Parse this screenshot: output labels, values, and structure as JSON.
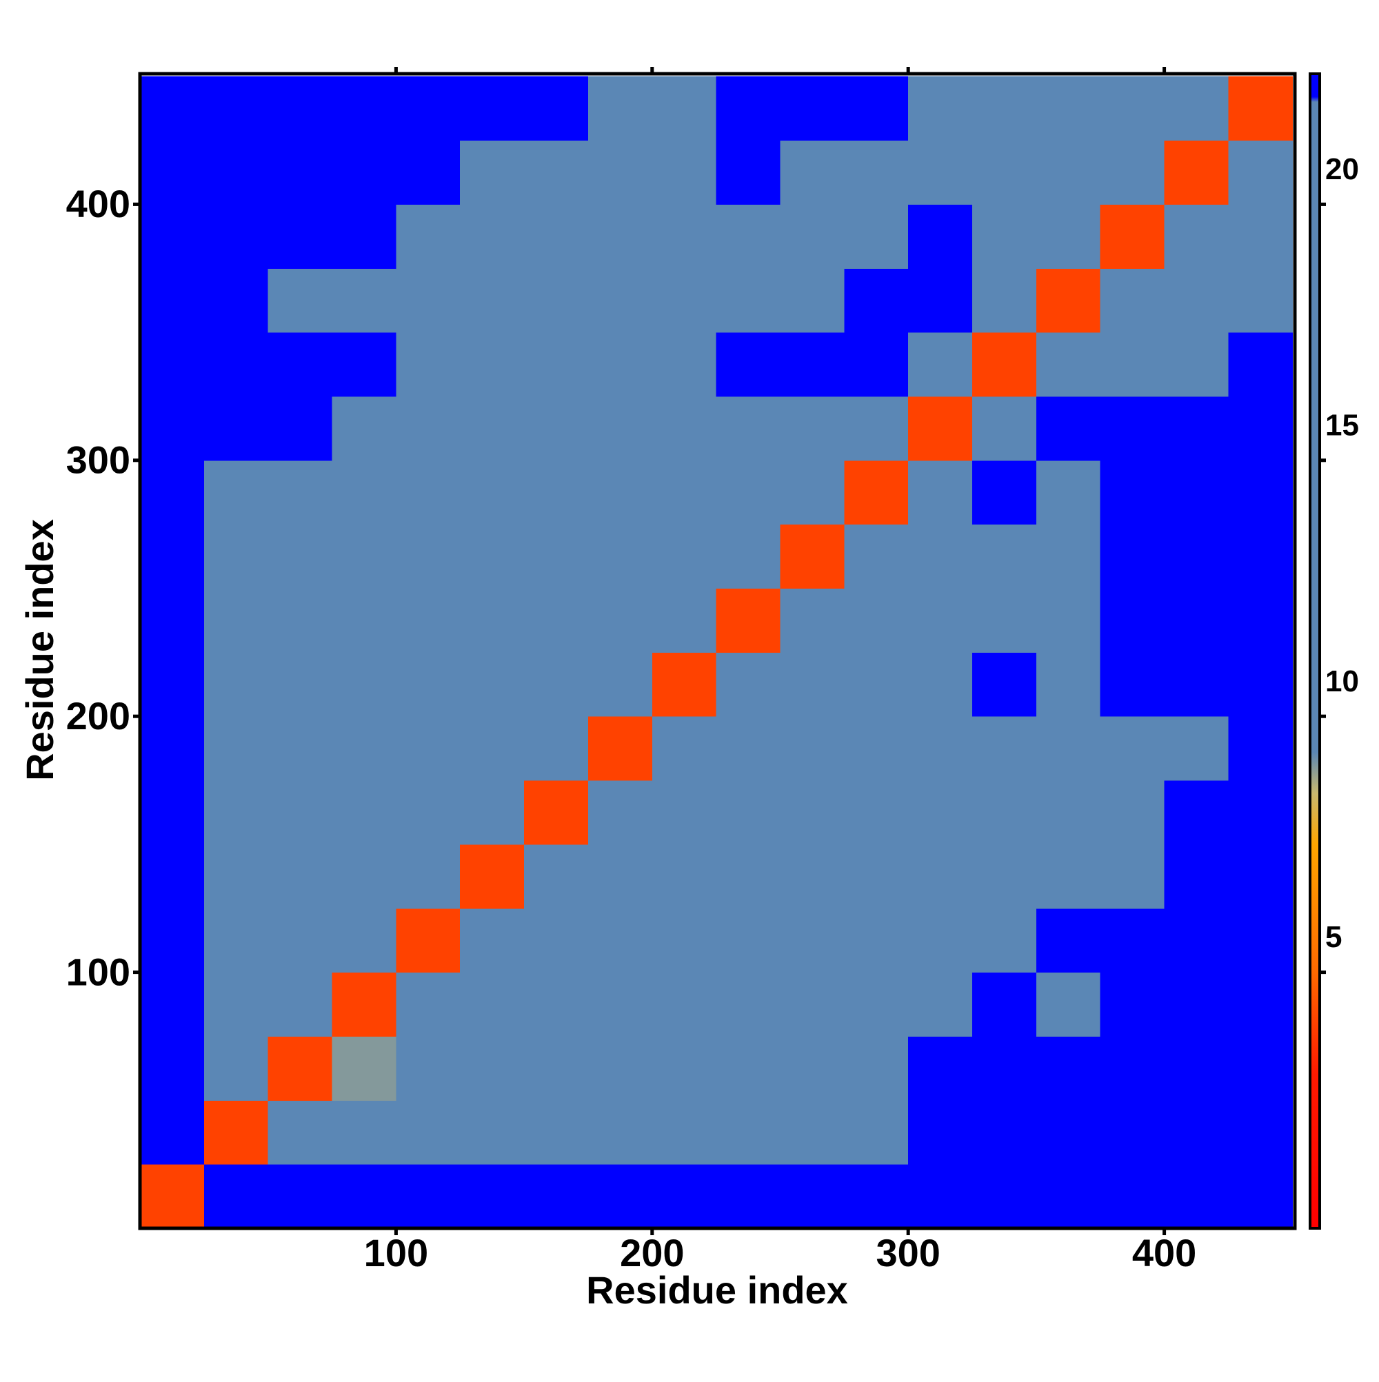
{
  "chart_data": {
    "type": "heatmap",
    "xlabel": "Residue index",
    "ylabel": "Residue index",
    "xlim": [
      0,
      451
    ],
    "ylim": [
      0,
      451
    ],
    "xticks": [
      100,
      200,
      300,
      400
    ],
    "yticks": [
      100,
      200,
      300,
      400
    ],
    "xbins": [
      0,
      25,
      50,
      75,
      100,
      125,
      150,
      175,
      200,
      225,
      250,
      275,
      300,
      325,
      350,
      375,
      400,
      425,
      450
    ],
    "ybins": [
      0,
      25,
      50,
      75,
      100,
      125,
      150,
      175,
      200,
      225,
      250,
      275,
      300,
      325,
      350,
      375,
      400,
      425,
      450
    ],
    "z": [
      [
        4,
        22.5,
        22.5,
        22.5,
        22.5,
        22.5,
        22.5,
        22.5,
        22.5,
        22.5,
        22.5,
        22.5,
        22.5,
        22.5,
        22.5,
        22.5,
        22.5,
        22.5
      ],
      [
        22.5,
        4,
        16,
        16,
        16,
        16,
        16,
        16,
        16,
        16,
        16,
        16,
        22.5,
        22.5,
        22.5,
        22.5,
        22.5,
        22.5
      ],
      [
        22.5,
        12,
        4,
        9,
        15,
        15,
        15,
        15,
        15,
        15,
        15,
        15,
        22.5,
        22.5,
        22.5,
        22.5,
        22.5,
        22.5
      ],
      [
        22.5,
        15,
        12,
        4,
        15,
        15,
        15,
        15,
        15,
        15,
        15,
        15,
        18,
        22.5,
        18,
        22.5,
        22.5,
        22.5
      ],
      [
        22.5,
        15,
        10,
        12,
        4,
        12,
        15,
        15,
        15,
        15,
        15,
        15,
        18,
        20,
        22.5,
        22.5,
        22.5,
        22.5
      ],
      [
        22.5,
        15,
        15,
        12,
        10,
        4,
        12,
        15,
        15,
        15,
        15,
        15,
        18,
        18,
        19,
        18,
        22.5,
        22.5
      ],
      [
        22.5,
        15,
        15,
        15,
        15,
        12,
        4,
        12,
        15,
        15,
        15,
        15,
        18,
        18,
        18,
        18,
        22.5,
        22.5
      ],
      [
        22.5,
        15,
        15,
        15,
        15,
        15,
        12,
        4,
        12,
        15,
        15,
        15,
        18,
        18,
        18,
        18,
        20,
        22.5
      ],
      [
        22.5,
        15,
        15,
        15,
        15,
        15,
        15,
        12,
        4,
        12,
        15,
        15,
        20,
        22.5,
        20,
        22.5,
        22.5,
        22.5
      ],
      [
        22.5,
        15,
        15,
        15,
        15,
        15,
        15,
        15,
        12,
        4,
        12,
        15,
        19,
        20,
        18,
        22.5,
        22.5,
        22.5
      ],
      [
        22.5,
        15,
        15,
        15,
        15,
        15,
        15,
        15,
        15,
        12,
        4,
        12,
        19,
        20,
        19,
        22.5,
        22.5,
        22.5
      ],
      [
        22.5,
        16,
        16,
        16,
        16,
        16,
        16,
        16,
        16,
        16,
        12,
        4,
        14,
        22.5,
        20,
        22.5,
        22.5,
        22.5
      ],
      [
        22.5,
        22.5,
        22.5,
        20,
        20,
        18,
        18,
        20,
        19,
        20,
        20,
        14,
        4,
        14,
        22.5,
        22.5,
        22.5,
        22.5
      ],
      [
        22.5,
        22.5,
        22.5,
        22.5,
        20,
        19,
        19,
        20,
        19,
        22.5,
        22.5,
        22.5,
        14,
        4,
        14,
        16,
        16,
        22.5
      ],
      [
        22.5,
        22.5,
        20,
        19,
        19,
        19,
        19,
        19,
        19,
        19,
        20,
        22.5,
        22.5,
        14,
        4,
        12,
        14,
        16
      ],
      [
        22.5,
        22.5,
        22.5,
        22.5,
        20,
        20,
        19,
        20,
        20,
        20,
        20,
        20,
        22.5,
        20,
        12,
        4,
        12,
        16
      ],
      [
        22.5,
        22.5,
        22.5,
        22.5,
        22.5,
        20,
        20,
        19,
        20,
        22.5,
        20,
        20,
        20,
        16,
        14,
        12,
        4,
        12
      ],
      [
        22.5,
        22.5,
        22.5,
        22.5,
        22.5,
        22.5,
        22.5,
        20,
        20,
        22.5,
        22.5,
        22.5,
        20,
        16,
        14,
        14,
        12,
        4
      ]
    ],
    "colorscale": [
      [
        0,
        "#ff0000"
      ],
      [
        3,
        "#ff1a00"
      ],
      [
        5,
        "#ff6a00"
      ],
      [
        7.5,
        "#ffa500"
      ],
      [
        8.5,
        "#c8b870"
      ],
      [
        9.3,
        "#5b87b5"
      ],
      [
        22,
        "#5b87b5"
      ],
      [
        22.1,
        "#0000ff"
      ],
      [
        22.55,
        "#0000ff"
      ]
    ],
    "colorbar": {
      "lim": [
        0,
        22.55
      ],
      "ticks": [
        5,
        10,
        15,
        20
      ]
    }
  }
}
